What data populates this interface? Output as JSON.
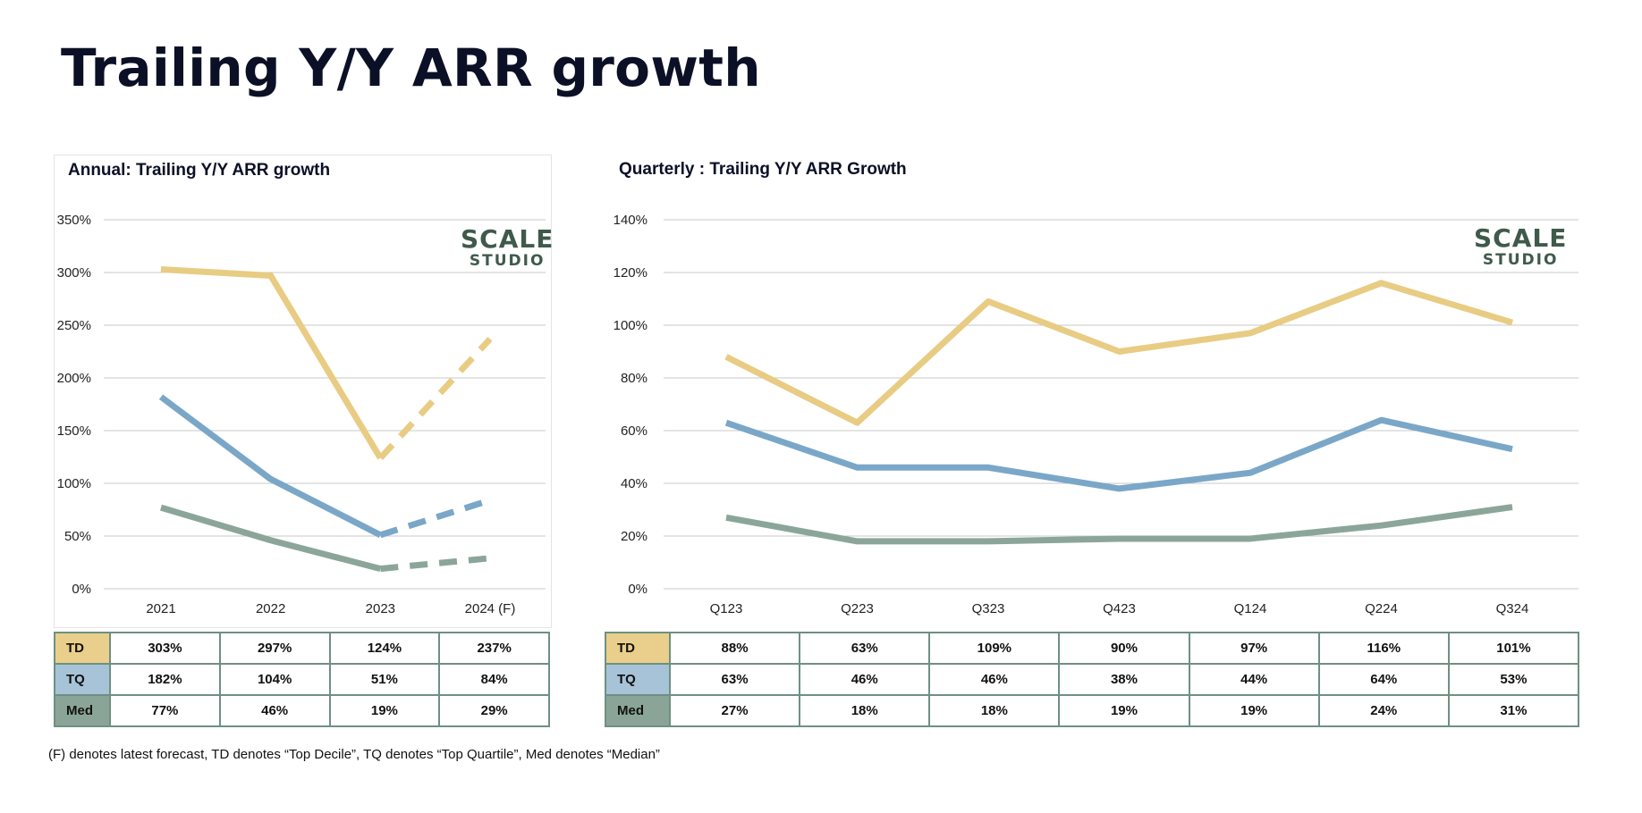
{
  "page_title": "Trailing Y/Y ARR growth",
  "logo": {
    "line1": "SCALE",
    "line2": "STUDIO",
    "color": "#3f5a4b"
  },
  "colors": {
    "TD": "#e8cc83",
    "TQ": "#7aa7c8",
    "Med": "#8ba699",
    "TD_cell": "#e9cf8b",
    "TQ_cell": "#a7c3d8",
    "Med_cell": "#8aa597",
    "table_border": "#6e9082"
  },
  "footnote": "(F) denotes latest forecast, TD denotes “Top Decile”, TQ denotes “Top Quartile”, Med denotes “Median”",
  "chart_data": [
    {
      "type": "line",
      "title": "Annual: Trailing Y/Y ARR growth",
      "categories": [
        "2021",
        "2022",
        "2023",
        "2024 (F)"
      ],
      "ylim": [
        0,
        350
      ],
      "yticks": [
        0,
        50,
        100,
        150,
        200,
        250,
        300,
        350
      ],
      "ytick_labels": [
        "0%",
        "50%",
        "100%",
        "150%",
        "200%",
        "250%",
        "300%",
        "350%"
      ],
      "forecast_from_index": 2,
      "grid": true,
      "series": [
        {
          "name": "TD",
          "values": [
            303,
            297,
            124,
            237
          ],
          "labels": [
            "303%",
            "297%",
            "124%",
            "237%"
          ]
        },
        {
          "name": "TQ",
          "values": [
            182,
            104,
            51,
            84
          ],
          "labels": [
            "182%",
            "104%",
            "51%",
            "84%"
          ]
        },
        {
          "name": "Med",
          "values": [
            77,
            46,
            19,
            29
          ],
          "labels": [
            "77%",
            "46%",
            "19%",
            "29%"
          ]
        }
      ]
    },
    {
      "type": "line",
      "title": "Quarterly : Trailing Y/Y ARR Growth",
      "categories": [
        "Q123",
        "Q223",
        "Q323",
        "Q423",
        "Q124",
        "Q224",
        "Q324"
      ],
      "ylim": [
        0,
        140
      ],
      "yticks": [
        0,
        20,
        40,
        60,
        80,
        100,
        120,
        140
      ],
      "ytick_labels": [
        "0%",
        "20%",
        "40%",
        "60%",
        "80%",
        "100%",
        "120%",
        "140%"
      ],
      "grid": true,
      "series": [
        {
          "name": "TD",
          "values": [
            88,
            63,
            109,
            90,
            97,
            116,
            101
          ],
          "labels": [
            "88%",
            "63%",
            "109%",
            "90%",
            "97%",
            "116%",
            "101%"
          ]
        },
        {
          "name": "TQ",
          "values": [
            63,
            46,
            46,
            38,
            44,
            64,
            53
          ],
          "labels": [
            "63%",
            "46%",
            "46%",
            "38%",
            "44%",
            "64%",
            "53%"
          ]
        },
        {
          "name": "Med",
          "values": [
            27,
            18,
            18,
            19,
            19,
            24,
            31
          ],
          "labels": [
            "27%",
            "18%",
            "18%",
            "19%",
            "19%",
            "24%",
            "31%"
          ]
        }
      ]
    }
  ]
}
